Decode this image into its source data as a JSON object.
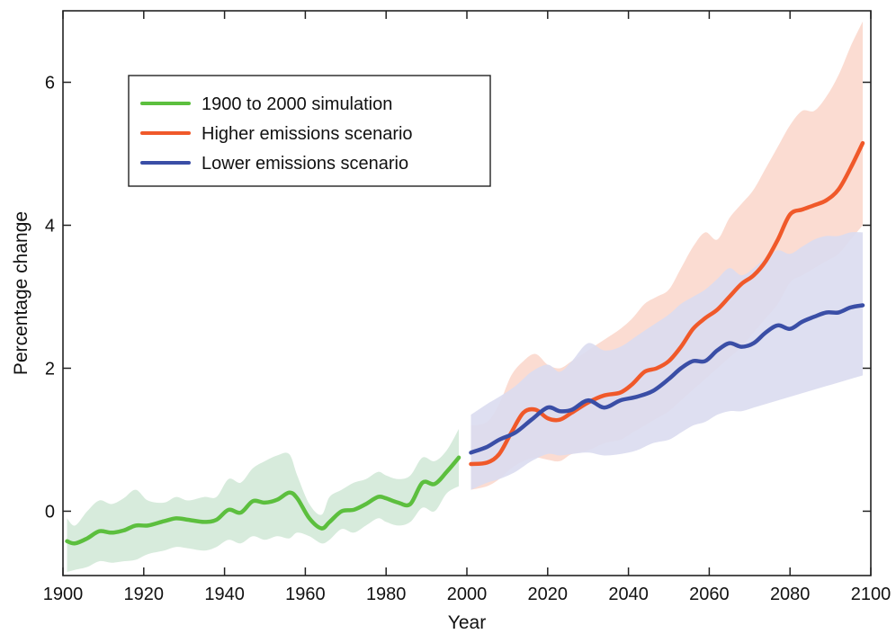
{
  "chart_data": {
    "type": "line",
    "title": "",
    "xlabel": "Year",
    "ylabel": "Percentage change",
    "xlim": [
      1900,
      2100
    ],
    "ylim": [
      -0.9,
      7.0
    ],
    "xticks": [
      1900,
      1920,
      1940,
      1960,
      1980,
      2000,
      2020,
      2040,
      2060,
      2080,
      2100
    ],
    "yticks": [
      0,
      2,
      4,
      6
    ],
    "grid": false,
    "legend_position": "top-left",
    "series": [
      {
        "name": "1900 to 2000 simulation",
        "color": "#5cbf3e",
        "band_color": "#d7ebdc",
        "x": [
          1901,
          1903,
          1906,
          1909,
          1912,
          1915,
          1918,
          1921,
          1925,
          1928,
          1931,
          1935,
          1938,
          1941,
          1944,
          1947,
          1950,
          1953,
          1956,
          1958,
          1961,
          1964,
          1966,
          1969,
          1972,
          1975,
          1978,
          1980,
          1983,
          1986,
          1989,
          1992,
          1995,
          1998
        ],
        "y": [
          -0.42,
          -0.45,
          -0.38,
          -0.28,
          -0.3,
          -0.27,
          -0.2,
          -0.2,
          -0.14,
          -0.1,
          -0.12,
          -0.15,
          -0.12,
          0.02,
          -0.02,
          0.14,
          0.12,
          0.16,
          0.26,
          0.18,
          -0.1,
          -0.24,
          -0.15,
          0.0,
          0.02,
          0.1,
          0.2,
          0.18,
          0.12,
          0.1,
          0.4,
          0.38,
          0.55,
          0.75
        ],
        "upper": [
          -0.1,
          -0.2,
          0.0,
          0.15,
          0.1,
          0.18,
          0.3,
          0.15,
          0.12,
          0.2,
          0.15,
          0.2,
          0.2,
          0.45,
          0.4,
          0.6,
          0.7,
          0.78,
          0.8,
          0.5,
          0.1,
          -0.05,
          0.2,
          0.3,
          0.4,
          0.45,
          0.55,
          0.5,
          0.45,
          0.5,
          0.75,
          0.7,
          0.85,
          1.15
        ],
        "lower": [
          -0.85,
          -0.82,
          -0.78,
          -0.7,
          -0.72,
          -0.7,
          -0.68,
          -0.6,
          -0.55,
          -0.5,
          -0.52,
          -0.55,
          -0.5,
          -0.4,
          -0.45,
          -0.35,
          -0.4,
          -0.35,
          -0.38,
          -0.3,
          -0.35,
          -0.45,
          -0.4,
          -0.25,
          -0.3,
          -0.2,
          -0.1,
          -0.15,
          -0.2,
          -0.15,
          0.05,
          0.0,
          0.25,
          0.35
        ]
      },
      {
        "name": "Higher emissions scenario",
        "color": "#f0592a",
        "band_color": "#fbdcd2",
        "x": [
          2001,
          2005,
          2008,
          2011,
          2014,
          2017,
          2020,
          2023,
          2026,
          2030,
          2034,
          2038,
          2041,
          2044,
          2047,
          2050,
          2053,
          2056,
          2059,
          2062,
          2065,
          2068,
          2071,
          2074,
          2077,
          2080,
          2083,
          2086,
          2089,
          2092,
          2095,
          2098
        ],
        "y": [
          0.66,
          0.68,
          0.8,
          1.1,
          1.38,
          1.42,
          1.3,
          1.28,
          1.38,
          1.52,
          1.62,
          1.66,
          1.78,
          1.95,
          2.0,
          2.1,
          2.3,
          2.55,
          2.7,
          2.82,
          3.0,
          3.18,
          3.3,
          3.5,
          3.8,
          4.15,
          4.22,
          4.28,
          4.35,
          4.5,
          4.8,
          5.15
        ],
        "upper": [
          1.2,
          1.25,
          1.5,
          1.9,
          2.1,
          2.2,
          2.05,
          2.0,
          2.1,
          2.25,
          2.4,
          2.55,
          2.7,
          2.9,
          3.0,
          3.1,
          3.4,
          3.7,
          3.9,
          3.8,
          4.1,
          4.3,
          4.5,
          4.8,
          5.1,
          5.4,
          5.6,
          5.6,
          5.8,
          6.1,
          6.5,
          6.85
        ],
        "lower": [
          0.3,
          0.35,
          0.45,
          0.6,
          0.7,
          0.75,
          0.72,
          0.7,
          0.8,
          0.85,
          0.95,
          1.0,
          1.1,
          1.2,
          1.3,
          1.4,
          1.55,
          1.7,
          1.85,
          2.0,
          2.15,
          2.3,
          2.5,
          2.7,
          2.9,
          3.2,
          3.3,
          3.4,
          3.5,
          3.6,
          3.8,
          4.0
        ]
      },
      {
        "name": "Lower emissions scenario",
        "color": "#3a4ea6",
        "band_color": "#dadcef",
        "x": [
          2001,
          2005,
          2008,
          2012,
          2016,
          2020,
          2023,
          2026,
          2030,
          2034,
          2038,
          2042,
          2046,
          2050,
          2053,
          2056,
          2059,
          2062,
          2065,
          2068,
          2071,
          2074,
          2077,
          2080,
          2083,
          2086,
          2089,
          2092,
          2095,
          2098
        ],
        "y": [
          0.82,
          0.9,
          1.0,
          1.1,
          1.28,
          1.45,
          1.4,
          1.42,
          1.55,
          1.45,
          1.55,
          1.6,
          1.68,
          1.85,
          2.0,
          2.1,
          2.1,
          2.25,
          2.35,
          2.3,
          2.35,
          2.5,
          2.6,
          2.55,
          2.65,
          2.72,
          2.78,
          2.78,
          2.85,
          2.88
        ],
        "upper": [
          1.35,
          1.5,
          1.6,
          1.75,
          1.95,
          2.05,
          1.95,
          2.1,
          2.35,
          2.25,
          2.3,
          2.45,
          2.6,
          2.75,
          2.9,
          3.0,
          3.1,
          3.25,
          3.4,
          3.3,
          3.4,
          3.55,
          3.65,
          3.6,
          3.7,
          3.8,
          3.85,
          3.85,
          3.9,
          3.9
        ],
        "lower": [
          0.3,
          0.4,
          0.45,
          0.55,
          0.7,
          0.8,
          0.78,
          0.8,
          0.82,
          0.78,
          0.8,
          0.85,
          0.95,
          1.0,
          1.1,
          1.2,
          1.25,
          1.35,
          1.4,
          1.4,
          1.45,
          1.5,
          1.55,
          1.6,
          1.65,
          1.7,
          1.75,
          1.8,
          1.85,
          1.9
        ]
      }
    ]
  }
}
